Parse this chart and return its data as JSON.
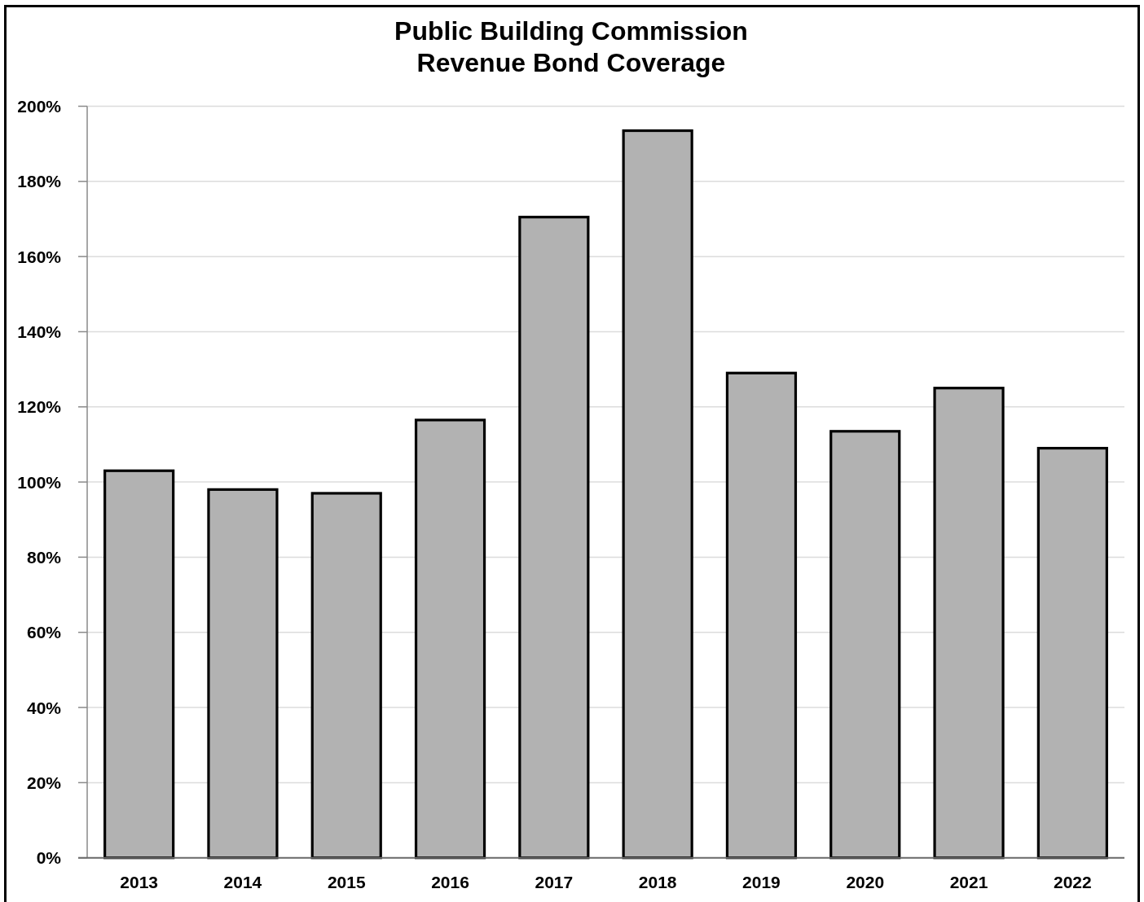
{
  "chart_data": {
    "type": "bar",
    "title": "Public Building Commission\nRevenue Bond Coverage",
    "categories": [
      "2013",
      "2014",
      "2015",
      "2016",
      "2017",
      "2018",
      "2019",
      "2020",
      "2021",
      "2022"
    ],
    "values": [
      103,
      98,
      97,
      116.5,
      170.5,
      193.5,
      129,
      113.5,
      125,
      109
    ],
    "color": "#b2b2b2",
    "ylim": [
      0,
      200
    ],
    "yticks": [
      {
        "value": 0,
        "label": "0%"
      },
      {
        "value": 20,
        "label": "20%"
      },
      {
        "value": 40,
        "label": "40%"
      },
      {
        "value": 60,
        "label": "60%"
      },
      {
        "value": 80,
        "label": "80%"
      },
      {
        "value": 100,
        "label": "100%"
      },
      {
        "value": 120,
        "label": "120%"
      },
      {
        "value": 140,
        "label": "140%"
      },
      {
        "value": 160,
        "label": "160%"
      },
      {
        "value": 180,
        "label": "180%"
      },
      {
        "value": 200,
        "label": "200%"
      }
    ],
    "grid": "y"
  }
}
